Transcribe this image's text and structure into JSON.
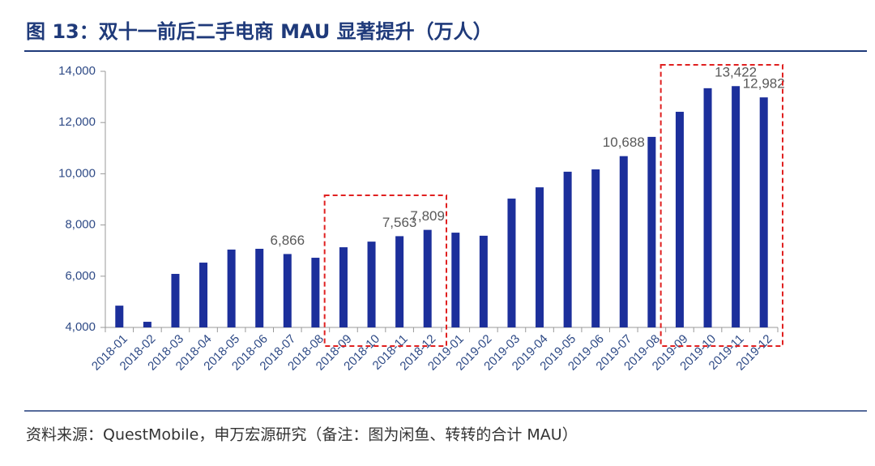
{
  "title": "图 13：双十一前后二手电商 MAU 显著提升（万人）",
  "source": "资料来源：QuestMobile，申万宏源研究（备注：图为闲鱼、转转的合计 MAU）",
  "chart_data": {
    "type": "bar",
    "categories": [
      "2018-01",
      "2018-02",
      "2018-03",
      "2018-04",
      "2018-05",
      "2018-06",
      "2018-07",
      "2018-08",
      "2018-09",
      "2018-10",
      "2018-11",
      "2018-12",
      "2019-01",
      "2019-02",
      "2019-03",
      "2019-04",
      "2019-05",
      "2019-06",
      "2019-07",
      "2019-08",
      "2019-09",
      "2019-10",
      "2019-11",
      "2019-12"
    ],
    "values": [
      4850,
      4220,
      6090,
      6530,
      7040,
      7070,
      6866,
      6720,
      7130,
      7350,
      7563,
      7809,
      7700,
      7580,
      9030,
      9470,
      10080,
      10170,
      10688,
      11440,
      12420,
      13340,
      13422,
      12982
    ],
    "value_labels": [
      null,
      null,
      null,
      null,
      null,
      null,
      "6,866",
      null,
      null,
      null,
      "7,563",
      "7,809",
      null,
      null,
      null,
      null,
      null,
      null,
      "10,688",
      null,
      null,
      null,
      "13,422",
      "12,982"
    ],
    "color": "#1c2f9b",
    "ylim": [
      4000,
      14000
    ],
    "yticks": [
      {
        "value": 4000,
        "label": "4,000"
      },
      {
        "value": 6000,
        "label": "6,000"
      },
      {
        "value": 8000,
        "label": "8,000"
      },
      {
        "value": 10000,
        "label": "10,000"
      },
      {
        "value": 12000,
        "label": "12,000"
      },
      {
        "value": 14000,
        "label": "14,000"
      }
    ]
  }
}
